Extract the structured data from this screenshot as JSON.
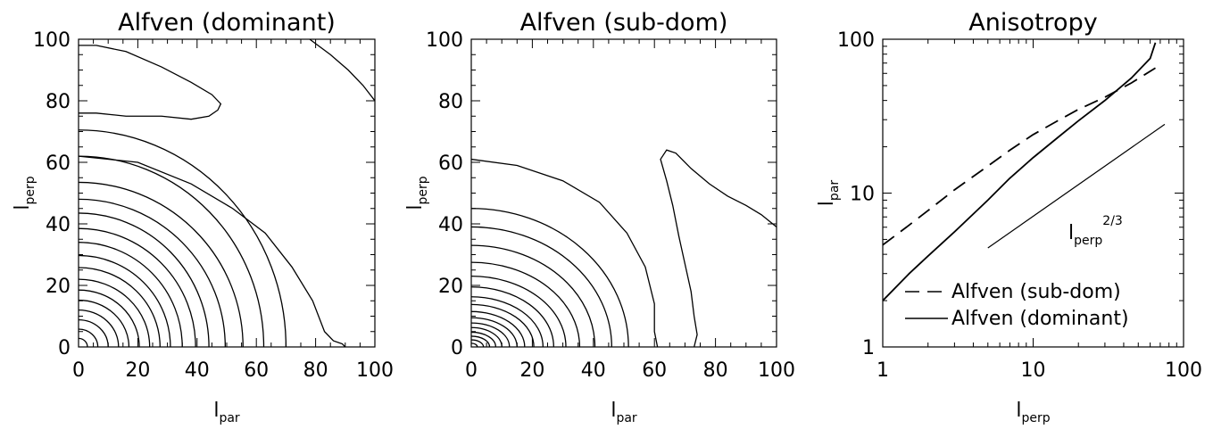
{
  "chart_data": [
    {
      "type": "contour",
      "title": "Alfven (dominant)",
      "xlabel": "l",
      "xlabel_sub": "par",
      "ylabel": "l",
      "ylabel_sub": "perp",
      "xlim": [
        0,
        100
      ],
      "ylim": [
        0,
        100
      ],
      "xticks": [
        "0",
        "20",
        "40",
        "60",
        "80",
        "100"
      ],
      "yticks": [
        "0",
        "20",
        "40",
        "60",
        "80",
        "100"
      ],
      "contours": [
        {
          "kind": "ellipse",
          "rx": 3.0,
          "ry": 2.8
        },
        {
          "kind": "ellipse",
          "rx": 6.5,
          "ry": 5.8
        },
        {
          "kind": "ellipse",
          "rx": 10.0,
          "ry": 8.8
        },
        {
          "kind": "ellipse",
          "rx": 13.5,
          "ry": 12.0
        },
        {
          "kind": "ellipse",
          "rx": 17.0,
          "ry": 15.2
        },
        {
          "kind": "ellipse",
          "rx": 20.5,
          "ry": 18.5
        },
        {
          "kind": "ellipse",
          "rx": 24.0,
          "ry": 22.0
        },
        {
          "kind": "ellipse",
          "rx": 27.5,
          "ry": 25.8
        },
        {
          "kind": "ellipse",
          "rx": 31.0,
          "ry": 29.7
        },
        {
          "kind": "ellipse",
          "rx": 35.0,
          "ry": 34.0
        },
        {
          "kind": "ellipse",
          "rx": 39.5,
          "ry": 38.5
        },
        {
          "kind": "ellipse",
          "rx": 44.0,
          "ry": 43.5
        },
        {
          "kind": "ellipse",
          "rx": 49.5,
          "ry": 48.0
        },
        {
          "kind": "ellipse",
          "rx": 55.5,
          "ry": 53.5
        },
        {
          "kind": "ellipse",
          "rx": 62.5,
          "ry": 62.0
        },
        {
          "kind": "ellipse",
          "rx": 70.0,
          "ry": 70.5
        },
        {
          "kind": "path",
          "points": [
            [
              0,
              62
            ],
            [
              20,
              60
            ],
            [
              38,
              53
            ],
            [
              52,
              45
            ],
            [
              63,
              37
            ],
            [
              72,
              26
            ],
            [
              79,
              15
            ],
            [
              83,
              5
            ],
            [
              86,
              2
            ],
            [
              89,
              1
            ],
            [
              90,
              0
            ]
          ]
        },
        {
          "kind": "path",
          "points": [
            [
              0,
              98
            ],
            [
              6,
              98
            ],
            [
              16,
              96
            ],
            [
              28,
              91
            ],
            [
              38,
              86
            ],
            [
              45,
              82
            ],
            [
              48,
              79
            ],
            [
              47,
              77
            ],
            [
              44,
              75
            ],
            [
              38,
              74
            ],
            [
              28,
              75
            ],
            [
              16,
              75
            ],
            [
              6,
              76
            ],
            [
              0,
              76
            ]
          ]
        },
        {
          "kind": "path",
          "points": [
            [
              78,
              100
            ],
            [
              85,
              95
            ],
            [
              91,
              90
            ],
            [
              96,
              85
            ],
            [
              100,
              80
            ]
          ]
        }
      ]
    },
    {
      "type": "contour",
      "title": "Alfven (sub-dom)",
      "xlabel": "l",
      "xlabel_sub": "par",
      "ylabel": "l",
      "ylabel_sub": "perp",
      "xlim": [
        0,
        100
      ],
      "ylim": [
        0,
        100
      ],
      "xticks": [
        "0",
        "20",
        "40",
        "60",
        "80",
        "100"
      ],
      "yticks": [
        "0",
        "20",
        "40",
        "60",
        "80",
        "100"
      ],
      "contours": [
        {
          "kind": "ellipse",
          "rx": 2.0,
          "ry": 1.2
        },
        {
          "kind": "ellipse",
          "rx": 4.0,
          "ry": 2.3
        },
        {
          "kind": "ellipse",
          "rx": 6.0,
          "ry": 3.5
        },
        {
          "kind": "ellipse",
          "rx": 8.0,
          "ry": 4.8
        },
        {
          "kind": "ellipse",
          "rx": 10.0,
          "ry": 6.3
        },
        {
          "kind": "ellipse",
          "rx": 12.5,
          "ry": 7.8
        },
        {
          "kind": "ellipse",
          "rx": 15.0,
          "ry": 9.5
        },
        {
          "kind": "ellipse",
          "rx": 17.5,
          "ry": 11.5
        },
        {
          "kind": "ellipse",
          "rx": 20.5,
          "ry": 13.8
        },
        {
          "kind": "ellipse",
          "rx": 23.5,
          "ry": 16.3
        },
        {
          "kind": "ellipse",
          "rx": 27.0,
          "ry": 19.5
        },
        {
          "kind": "ellipse",
          "rx": 31.0,
          "ry": 23.0
        },
        {
          "kind": "ellipse",
          "rx": 35.5,
          "ry": 27.5
        },
        {
          "kind": "ellipse",
          "rx": 40.5,
          "ry": 33.0
        },
        {
          "kind": "ellipse",
          "rx": 46.0,
          "ry": 39.0
        },
        {
          "kind": "ellipse",
          "rx": 51.5,
          "ry": 45.0
        },
        {
          "kind": "path",
          "points": [
            [
              0,
              61
            ],
            [
              15,
              59
            ],
            [
              30,
              54
            ],
            [
              42,
              47
            ],
            [
              51,
              37
            ],
            [
              57,
              26
            ],
            [
              60,
              14
            ],
            [
              60,
              5
            ],
            [
              61,
              0
            ]
          ]
        },
        {
          "kind": "path",
          "points": [
            [
              73,
              0
            ],
            [
              74,
              4
            ],
            [
              73,
              10
            ],
            [
              72,
              18
            ],
            [
              70,
              27
            ],
            [
              68,
              36
            ],
            [
              66,
              46
            ],
            [
              64,
              54
            ],
            [
              62,
              61
            ],
            [
              64,
              64
            ],
            [
              67,
              63
            ],
            [
              72,
              58
            ],
            [
              78,
              53
            ],
            [
              84,
              49
            ],
            [
              90,
              46
            ],
            [
              95,
              43
            ],
            [
              100,
              39
            ]
          ]
        }
      ]
    },
    {
      "type": "line",
      "title": "Anisotropy",
      "xlabel": "l",
      "xlabel_sub": "perp",
      "ylabel": "l",
      "ylabel_sub": "par",
      "xscale": "log",
      "yscale": "log",
      "xlim": [
        1,
        100
      ],
      "ylim": [
        1,
        100
      ],
      "xticks": [
        "1",
        "10",
        "100"
      ],
      "yticks": [
        "1",
        "10",
        "100"
      ],
      "annotation": {
        "base": "l",
        "sub": "perp",
        "sup": "2/3",
        "x": 16,
        "y": 6.2
      },
      "legend_position": "bottom-right",
      "series": [
        {
          "name": "Alfven (sub-dom)",
          "style": "dashed",
          "x": [
            1,
            1.5,
            2,
            3,
            5,
            7,
            10,
            15,
            20,
            30,
            45,
            65
          ],
          "y": [
            4.6,
            6.2,
            7.7,
            10.5,
            15.0,
            19.0,
            24.0,
            30.0,
            35.0,
            42.0,
            52.0,
            65.0
          ]
        },
        {
          "name": "Alfven (dominant)",
          "style": "solid",
          "x": [
            1,
            1.5,
            2,
            3,
            5,
            7,
            10,
            15,
            20,
            30,
            45,
            60,
            65
          ],
          "y": [
            2.0,
            3.0,
            3.9,
            5.6,
            9.0,
            12.5,
            17.0,
            23.5,
            29.5,
            40.0,
            56.0,
            75.0,
            95.0
          ]
        },
        {
          "name": "l_perp^(2/3)",
          "style": "thin",
          "x": [
            5,
            75
          ],
          "y": [
            4.4,
            28.0
          ]
        }
      ]
    }
  ]
}
